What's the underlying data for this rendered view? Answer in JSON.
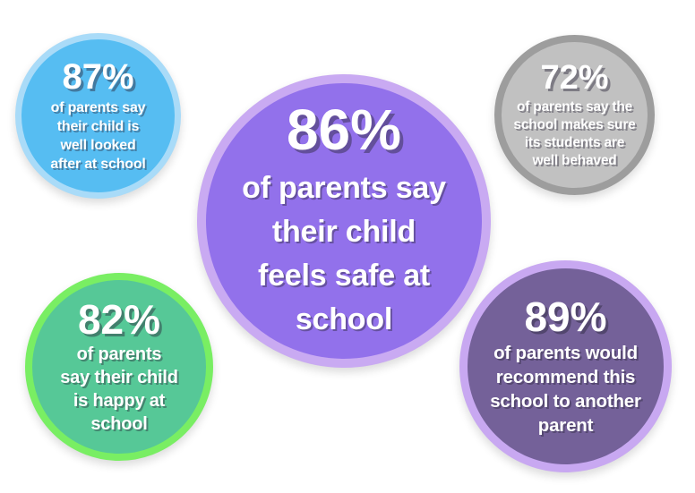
{
  "page": {
    "background_color": "#ffffff",
    "description": "Parent survey results infographic with five statistic bubbles"
  },
  "circles": [
    {
      "id": "well-looked-after",
      "percent": "87%",
      "lines": [
        "of parents say",
        "their child is",
        "well looked",
        "after at school"
      ],
      "full_text": "87% of parents say their child is well looked after at school",
      "fill_color": "#56bdf2",
      "ring_color": "#a9dbf8",
      "text_color": "#ffffff"
    },
    {
      "id": "feels-safe",
      "percent": "86%",
      "lines": [
        "of parents say",
        "their child",
        "feels safe at",
        "school"
      ],
      "full_text": "86% of parents say their child feels safe at school",
      "fill_color": "#9271eb",
      "ring_color": "#c9aaf2",
      "text_color": "#ffffff"
    },
    {
      "id": "well-behaved",
      "percent": "72%",
      "lines": [
        "of parents say the",
        "school makes sure",
        "its students are",
        "well behaved"
      ],
      "full_text": "72% of parents say the school makes sure its students are well behaved",
      "fill_color": "#c1c1c1",
      "ring_color": "#9d9d9d",
      "text_color": "#ffffff"
    },
    {
      "id": "happy-at-school",
      "percent": "82%",
      "lines": [
        "of parents",
        "say their child",
        "is happy at",
        "school"
      ],
      "full_text": "82% of parents say their child is happy at school",
      "fill_color": "#56c897",
      "ring_color": "#79ee63",
      "text_color": "#ffffff"
    },
    {
      "id": "recommend-school",
      "percent": "89%",
      "lines": [
        "of parents would",
        "recommend this",
        "school to another",
        "parent"
      ],
      "full_text": "89% of parents would recommend this school to another parent",
      "fill_color": "#746199",
      "ring_color": "#c8a8f1",
      "text_color": "#ffffff"
    }
  ]
}
